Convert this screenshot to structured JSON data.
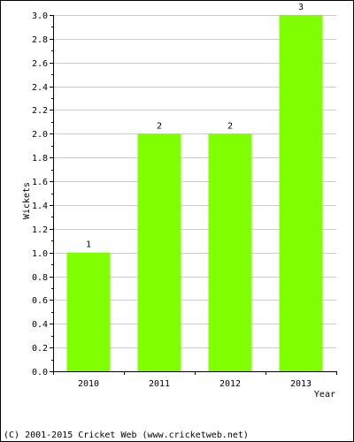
{
  "chart_data": {
    "type": "bar",
    "categories": [
      "2010",
      "2011",
      "2012",
      "2013"
    ],
    "values": [
      1,
      2,
      2,
      3
    ],
    "data_labels": [
      "1",
      "2",
      "2",
      "3"
    ],
    "xlabel": "Year",
    "ylabel": "Wickets",
    "ylim": [
      0,
      3.0
    ],
    "yticks": [
      "0.0",
      "0.2",
      "0.4",
      "0.6",
      "0.8",
      "1.0",
      "1.2",
      "1.4",
      "1.6",
      "1.8",
      "2.0",
      "2.2",
      "2.4",
      "2.6",
      "2.8",
      "3.0"
    ],
    "grid": true,
    "bar_color": "#80ff00",
    "grid_color": "#cccccc"
  },
  "footer": {
    "copyright": "(C) 2001-2015 Cricket Web (www.cricketweb.net)"
  }
}
